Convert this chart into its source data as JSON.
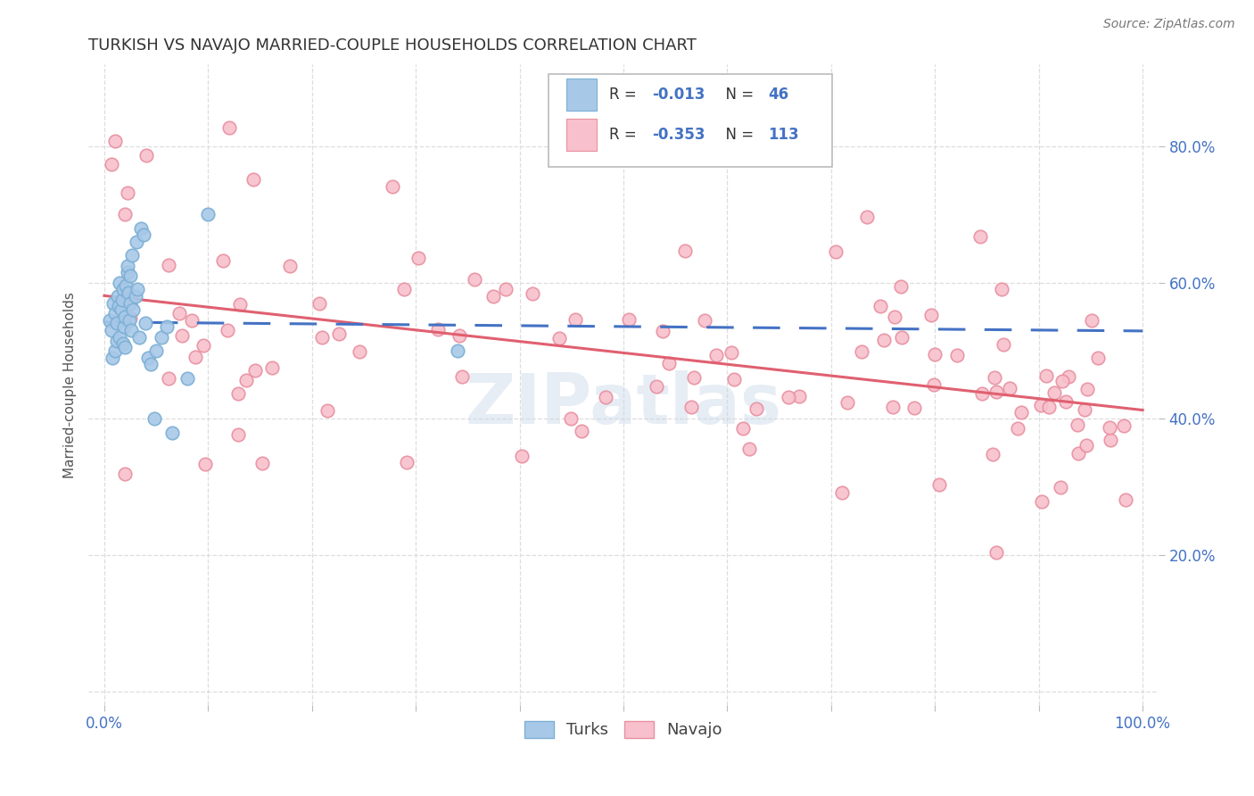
{
  "title": "TURKISH VS NAVAJO MARRIED-COUPLE HOUSEHOLDS CORRELATION CHART",
  "source": "Source: ZipAtlas.com",
  "ylabel": "Married-couple Households",
  "background_color": "#ffffff",
  "watermark": "ZIPatlas",
  "turks_R": -0.013,
  "turks_N": 46,
  "navajo_R": -0.353,
  "navajo_N": 113,
  "turks_color": "#a8c8e8",
  "turks_edge_color": "#7bafd4",
  "navajo_color": "#f8c0cc",
  "navajo_edge_color": "#e890a0",
  "trend_turks_color": "#4472c4",
  "trend_navajo_color": "#e06070",
  "title_color": "#333333",
  "source_color": "#777777",
  "ylabel_color": "#555555",
  "tick_color": "#4472c4",
  "grid_color": "#dddddd",
  "watermark_color": "#c8d8e8",
  "legend_edge_color": "#bbbbbb",
  "legend_text_color": "#333333",
  "legend_value_color": "#4472c4"
}
